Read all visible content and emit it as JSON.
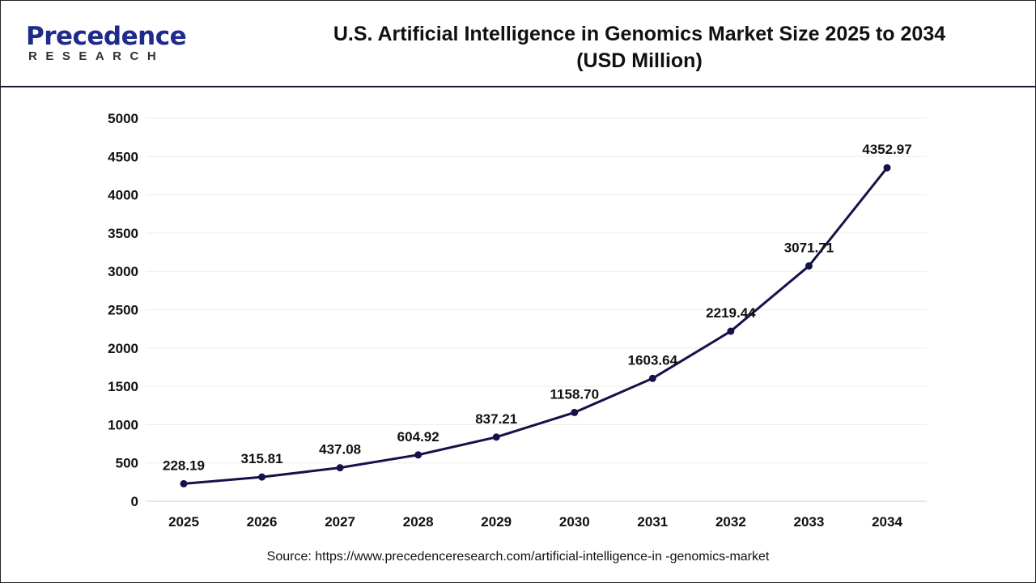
{
  "logo": {
    "main": "Precedence",
    "sub": "RESEARCH"
  },
  "title_line1": "U.S. Artificial Intelligence in Genomics Market Size 2025 to 2034",
  "title_line2": "(USD Million)",
  "source": "Source: https://www.precedenceresearch.com/artificial-intelligence-in -genomics-market",
  "colors": {
    "line": "#14124a",
    "grid": "#ececec",
    "brand": "#1e2a8c"
  },
  "chart_data": {
    "type": "line",
    "title": "U.S. Artificial Intelligence in Genomics Market Size 2025 to 2034 (USD Million)",
    "categories": [
      "2025",
      "2026",
      "2027",
      "2028",
      "2029",
      "2030",
      "2031",
      "2032",
      "2033",
      "2034"
    ],
    "values": [
      228.19,
      315.81,
      437.08,
      604.92,
      837.21,
      1158.7,
      1603.64,
      2219.44,
      3071.71,
      4352.97
    ],
    "labels": [
      "228.19",
      "315.81",
      "437.08",
      "604.92",
      "837.21",
      "1158.70",
      "1603.64",
      "2219.44",
      "3071.71",
      "4352.97"
    ],
    "ylim": [
      0,
      5000
    ],
    "yticks": [
      0,
      500,
      1000,
      1500,
      2000,
      2500,
      3000,
      3500,
      4000,
      4500,
      5000
    ],
    "grid": true,
    "xlabel": "",
    "ylabel": ""
  }
}
